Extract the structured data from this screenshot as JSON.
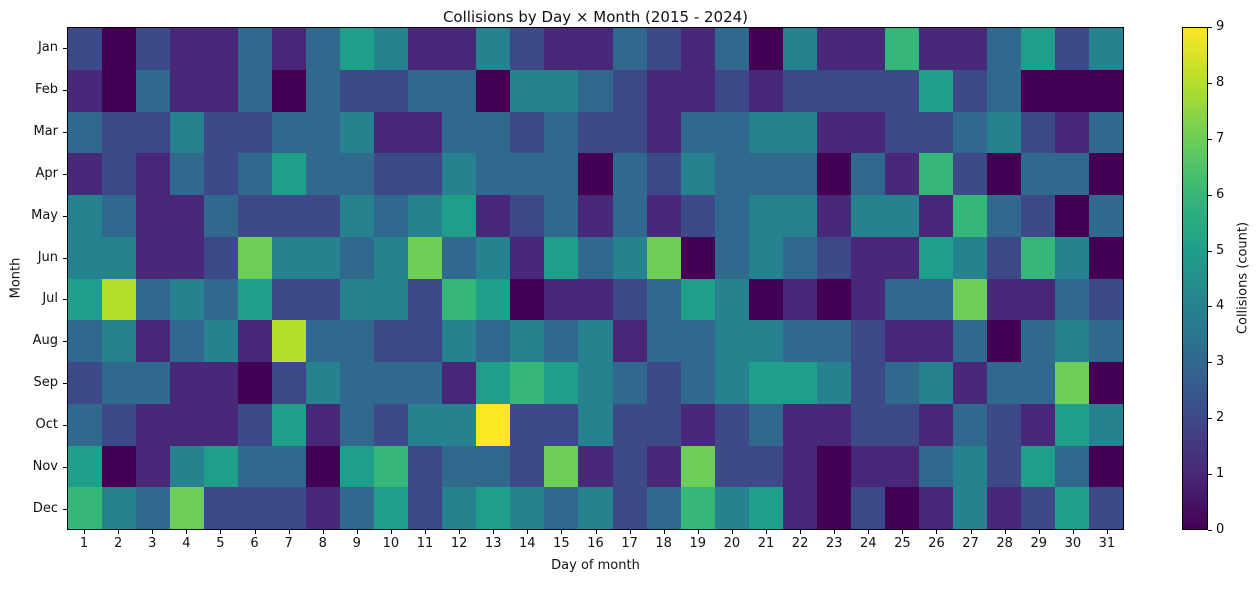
{
  "chart_data": {
    "type": "heatmap",
    "title": "Collisions by Day × Month (2015 - 2024)",
    "xlabel": "Day of month",
    "ylabel": "Month",
    "colorbar_label": "Collisions (count)",
    "colormap": "viridis",
    "vmin": 0,
    "vmax": 9,
    "legend_position": "right-colorbar",
    "grid": false,
    "x_ticks": [
      "1",
      "2",
      "3",
      "4",
      "5",
      "6",
      "7",
      "8",
      "9",
      "10",
      "11",
      "12",
      "13",
      "14",
      "15",
      "16",
      "17",
      "18",
      "19",
      "20",
      "21",
      "22",
      "23",
      "24",
      "25",
      "26",
      "27",
      "28",
      "29",
      "30",
      "31"
    ],
    "y_ticks": [
      "Jan",
      "Feb",
      "Mar",
      "Apr",
      "May",
      "Jun",
      "Jul",
      "Aug",
      "Sep",
      "Oct",
      "Nov",
      "Dec"
    ],
    "colorbar_ticks": [
      0,
      1,
      2,
      3,
      4,
      5,
      6,
      7,
      8,
      9
    ],
    "viridis_scale": [
      "#440154",
      "#482878",
      "#3e4989",
      "#31688e",
      "#26828e",
      "#1f9e89",
      "#35b779",
      "#6dcd59",
      "#b4de2c",
      "#fde725"
    ],
    "values": [
      [
        2,
        0,
        2,
        1,
        1,
        3,
        1,
        3,
        5,
        4,
        1,
        1,
        4,
        2,
        1,
        1,
        3,
        2,
        1,
        3,
        0,
        4,
        1,
        1,
        6,
        1,
        1,
        3,
        5,
        2,
        4
      ],
      [
        1,
        0,
        3,
        1,
        1,
        3,
        0,
        3,
        2,
        2,
        3,
        3,
        0,
        4,
        4,
        3,
        2,
        1,
        1,
        2,
        1,
        2,
        2,
        2,
        2,
        5,
        2,
        3,
        0,
        0,
        0
      ],
      [
        3,
        2,
        2,
        4,
        2,
        2,
        3,
        3,
        4,
        1,
        1,
        3,
        3,
        2,
        3,
        2,
        2,
        1,
        3,
        3,
        4,
        4,
        1,
        1,
        2,
        2,
        3,
        4,
        2,
        1,
        3
      ],
      [
        1,
        2,
        1,
        3,
        2,
        3,
        5,
        3,
        3,
        2,
        2,
        4,
        3,
        3,
        3,
        0,
        3,
        2,
        4,
        3,
        3,
        3,
        0,
        3,
        1,
        6,
        2,
        0,
        3,
        3,
        0
      ],
      [
        4,
        3,
        1,
        1,
        3,
        2,
        2,
        2,
        4,
        3,
        4,
        5,
        1,
        2,
        3,
        1,
        3,
        1,
        2,
        3,
        4,
        4,
        1,
        4,
        4,
        1,
        6,
        3,
        2,
        0,
        3
      ],
      [
        4,
        4,
        1,
        1,
        2,
        7,
        4,
        4,
        3,
        4,
        7,
        3,
        4,
        1,
        5,
        3,
        4,
        7,
        0,
        3,
        4,
        3,
        2,
        1,
        1,
        5,
        4,
        2,
        6,
        4,
        0
      ],
      [
        5,
        8,
        3,
        4,
        3,
        5,
        2,
        2,
        4,
        4,
        2,
        6,
        5,
        0,
        1,
        1,
        2,
        3,
        5,
        4,
        0,
        1,
        0,
        1,
        3,
        3,
        7,
        1,
        1,
        3,
        2
      ],
      [
        3,
        4,
        1,
        3,
        4,
        1,
        8,
        3,
        3,
        2,
        2,
        4,
        3,
        4,
        3,
        4,
        1,
        3,
        3,
        4,
        4,
        3,
        3,
        2,
        1,
        1,
        3,
        0,
        3,
        4,
        3
      ],
      [
        2,
        3,
        3,
        1,
        1,
        0,
        2,
        4,
        3,
        3,
        3,
        1,
        5,
        6,
        5,
        4,
        3,
        2,
        3,
        4,
        5,
        5,
        4,
        2,
        3,
        4,
        1,
        3,
        3,
        7,
        0
      ],
      [
        3,
        2,
        1,
        1,
        1,
        2,
        5,
        1,
        3,
        2,
        4,
        4,
        9,
        2,
        2,
        4,
        2,
        2,
        1,
        2,
        3,
        1,
        1,
        2,
        2,
        1,
        3,
        2,
        1,
        5,
        4
      ],
      [
        5,
        0,
        1,
        4,
        5,
        3,
        3,
        0,
        5,
        6,
        2,
        3,
        3,
        2,
        7,
        1,
        2,
        1,
        7,
        2,
        2,
        1,
        0,
        1,
        1,
        3,
        4,
        2,
        5,
        3,
        0
      ],
      [
        6,
        4,
        3,
        7,
        2,
        2,
        2,
        1,
        3,
        5,
        2,
        4,
        5,
        4,
        3,
        4,
        2,
        3,
        6,
        4,
        5,
        1,
        0,
        2,
        0,
        1,
        4,
        1,
        2,
        5,
        2
      ]
    ]
  }
}
